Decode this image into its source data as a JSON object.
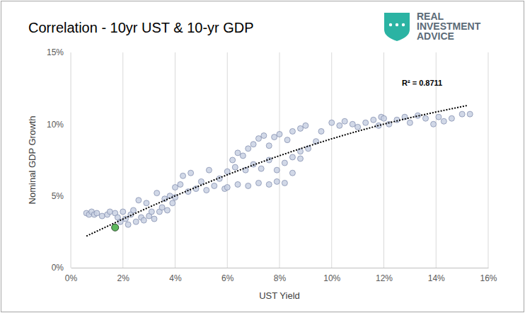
{
  "chart_data": {
    "type": "scatter",
    "title": "Correlation - 10yr UST & 10-yr GDP",
    "logo": [
      "REAL",
      "INVESTMENT",
      "ADVICE"
    ],
    "x_label": "UST Yield",
    "y_label": "Nominal GDP Growth",
    "annotation": "R² = 0.8711",
    "color": "#c9d1e3",
    "marker": "circle",
    "grid": "x",
    "x": [
      0.6,
      0.7,
      0.8,
      0.9,
      1.0,
      1.2,
      1.4,
      1.5,
      1.7,
      1.8,
      1.9,
      2.0,
      2.1,
      2.2,
      2.3,
      2.4,
      2.5,
      2.6,
      2.7,
      2.8,
      2.9,
      3.0,
      3.1,
      3.2,
      3.3,
      3.4,
      3.5,
      3.6,
      3.7,
      3.8,
      3.9,
      4.0,
      4.0,
      4.2,
      4.3,
      4.5,
      4.6,
      4.8,
      5.0,
      5.2,
      5.3,
      5.5,
      5.7,
      5.9,
      6.0,
      6.2,
      6.4,
      6.6,
      6.8,
      7.0,
      7.2,
      7.4,
      7.6,
      7.8,
      8.0,
      8.3,
      8.5,
      8.8,
      9.0,
      6.3,
      6.7,
      7.0,
      7.3,
      7.6,
      7.9,
      8.2,
      8.5,
      8.8,
      9.1,
      9.4,
      6.0,
      6.4,
      6.8,
      7.2,
      7.6,
      7.9,
      8.2,
      8.5,
      8.8,
      9.6,
      10.0,
      10.3,
      10.5,
      10.8,
      11.0,
      11.3,
      11.6,
      11.8,
      11.9,
      12.0,
      12.2,
      12.5,
      12.8,
      13.0,
      13.3,
      13.6,
      13.9,
      14.1,
      14.3,
      14.6,
      15.0,
      15.3
    ],
    "values": [
      3.8,
      3.7,
      3.9,
      3.7,
      3.8,
      3.6,
      3.7,
      3.9,
      3.8,
      3.5,
      3.2,
      3.9,
      3.4,
      3.0,
      3.7,
      4.0,
      3.2,
      4.7,
      3.5,
      3.3,
      4.5,
      3.6,
      3.9,
      3.4,
      5.2,
      3.9,
      4.2,
      4.8,
      4.0,
      5.0,
      4.5,
      5.6,
      4.9,
      5.8,
      6.4,
      5.3,
      6.6,
      5.5,
      6.0,
      5.4,
      6.8,
      5.7,
      6.2,
      5.5,
      6.7,
      7.5,
      8.0,
      7.8,
      8.3,
      8.6,
      9.0,
      9.2,
      8.5,
      9.1,
      9.3,
      8.9,
      9.5,
      9.7,
      9.9,
      7.0,
      6.8,
      7.2,
      6.9,
      7.5,
      6.8,
      7.3,
      7.7,
      8.1,
      8.3,
      8.8,
      5.6,
      5.8,
      5.7,
      5.9,
      5.8,
      6.0,
      5.9,
      6.6,
      7.6,
      9.5,
      10.1,
      9.9,
      10.2,
      10.0,
      9.8,
      10.1,
      10.3,
      9.9,
      10.5,
      10.4,
      10.0,
      10.3,
      10.5,
      10.1,
      10.6,
      10.4,
      10.0,
      10.5,
      10.2,
      10.4,
      10.7,
      10.7
    ],
    "highlight": {
      "x": 1.7,
      "value": 2.8,
      "color": "#5cb85c"
    },
    "trendline": {
      "x": [
        0.6,
        4,
        8,
        12,
        15.2
      ],
      "values": [
        2.2,
        5.0,
        7.8,
        10.0,
        11.3
      ],
      "line_style": "dotted",
      "color": "#000000"
    },
    "xlim": [
      0,
      16
    ],
    "xticks": [
      {
        "value": 0,
        "label": "0%"
      },
      {
        "value": 2,
        "label": "2%"
      },
      {
        "value": 4,
        "label": "4%"
      },
      {
        "value": 6,
        "label": "6%"
      },
      {
        "value": 8,
        "label": "8%"
      },
      {
        "value": 10,
        "label": "10%"
      },
      {
        "value": 12,
        "label": "12%"
      },
      {
        "value": 14,
        "label": "14%"
      },
      {
        "value": 16,
        "label": "16%"
      }
    ],
    "ylim": [
      0,
      15
    ],
    "yticks": [
      {
        "value": 0,
        "label": "0%"
      },
      {
        "value": 5,
        "label": "5%"
      },
      {
        "value": 10,
        "label": "10%"
      },
      {
        "value": 15,
        "label": "15%"
      }
    ]
  }
}
